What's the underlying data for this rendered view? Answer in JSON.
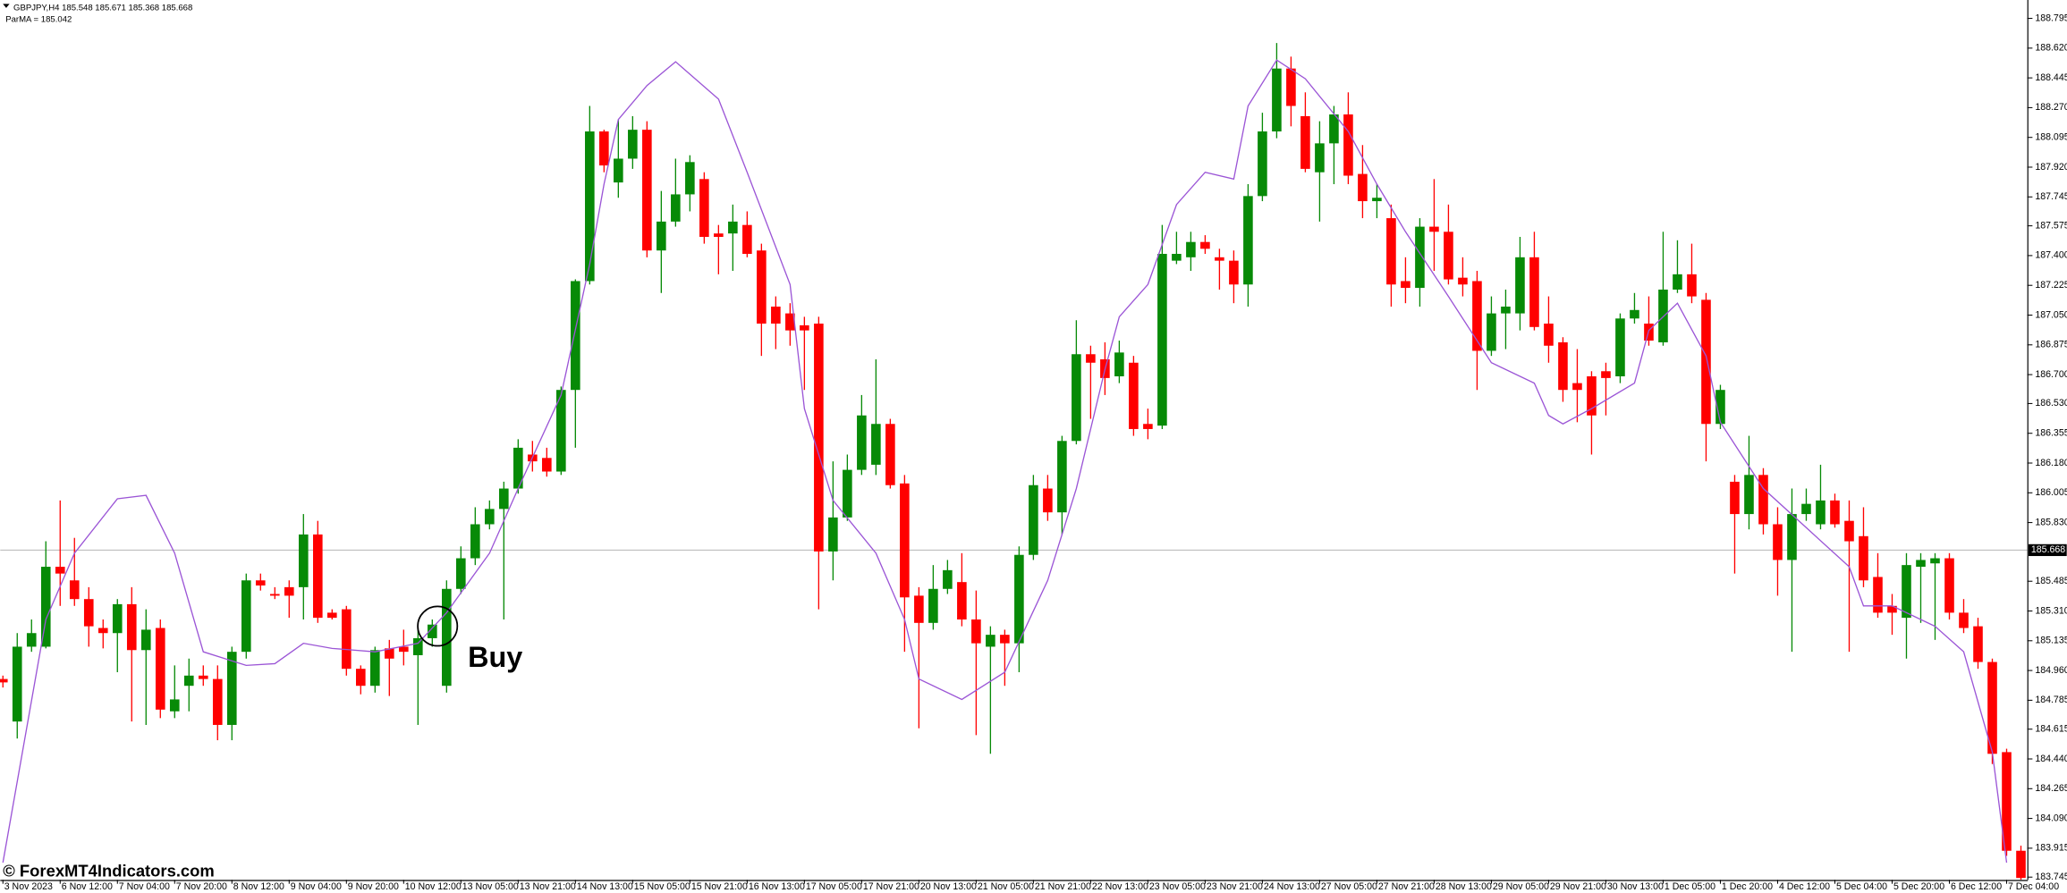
{
  "chart_data": {
    "type": "candlestick",
    "header": "GBPJPY,H4 185.548 185.671 185.368 185.668",
    "indicator_label": "ParMA = 185.042",
    "annotation": "Buy",
    "watermark": "© ForexMT4Indicators.com",
    "up_color": "#078a07",
    "down_color": "#ff0000",
    "current_price": 185.668,
    "ylim": [
      183.729,
      188.903
    ],
    "yticks": [
      188.795,
      {
        "value": 188.62,
        "label": "188.620"
      },
      188.445,
      {
        "value": 188.27,
        "label": "188.270"
      },
      188.095,
      {
        "value": 187.92,
        "label": "187.920"
      },
      187.745,
      187.575,
      {
        "value": 187.4,
        "label": "187.400"
      },
      187.225,
      {
        "value": 187.05,
        "label": "187.050"
      },
      186.875,
      {
        "value": 186.7,
        "label": "186.700"
      },
      {
        "value": 186.53,
        "label": "186.530"
      },
      186.355,
      {
        "value": 186.18,
        "label": "186.180"
      },
      186.005,
      {
        "value": 185.83,
        "label": "185.830"
      },
      185.485,
      {
        "value": 185.31,
        "label": "185.310"
      },
      185.135,
      {
        "value": 184.96,
        "label": "184.960"
      },
      184.785,
      184.615,
      {
        "value": 184.44,
        "label": "184.440"
      },
      184.265,
      {
        "value": 184.09,
        "label": "184.090"
      },
      183.915,
      183.745
    ],
    "xlabels": [
      "3 Nov 2023",
      "6 Nov 12:00",
      "7 Nov 04:00",
      "7 Nov 20:00",
      "8 Nov 12:00",
      "9 Nov 04:00",
      "9 Nov 20:00",
      "10 Nov 12:00",
      "13 Nov 05:00",
      "13 Nov 21:00",
      "14 Nov 13:00",
      "15 Nov 05:00",
      "15 Nov 21:00",
      "16 Nov 13:00",
      "17 Nov 05:00",
      "17 Nov 21:00",
      "20 Nov 13:00",
      "21 Nov 05:00",
      "21 Nov 21:00",
      "22 Nov 13:00",
      "23 Nov 05:00",
      "23 Nov 21:00",
      "24 Nov 13:00",
      "27 Nov 05:00",
      "27 Nov 21:00",
      "28 Nov 13:00",
      "29 Nov 05:00",
      "29 Nov 21:00",
      "30 Nov 13:00",
      "1 Dec 05:00",
      "1 Dec 20:00",
      "4 Dec 12:00",
      "5 Dec 04:00",
      "5 Dec 20:00",
      "6 Dec 12:00",
      "7 Dec 04:00"
    ],
    "ohlc": [
      [
        184.91,
        184.93,
        184.86,
        184.89
      ],
      [
        184.66,
        185.18,
        184.56,
        185.1
      ],
      [
        185.1,
        185.26,
        185.07,
        185.18
      ],
      [
        185.1,
        185.72,
        185.09,
        185.57
      ],
      [
        185.57,
        185.96,
        185.34,
        185.53
      ],
      [
        185.49,
        185.74,
        185.34,
        185.38
      ],
      [
        185.38,
        185.45,
        185.1,
        185.22
      ],
      [
        185.21,
        185.26,
        185.09,
        185.18
      ],
      [
        185.18,
        185.38,
        184.95,
        185.35
      ],
      [
        185.35,
        185.45,
        184.66,
        185.08
      ],
      [
        185.08,
        185.32,
        184.64,
        185.2
      ],
      [
        185.21,
        185.26,
        184.68,
        184.73
      ],
      [
        184.72,
        184.99,
        184.68,
        184.79
      ],
      [
        184.87,
        185.03,
        184.72,
        184.93
      ],
      [
        184.93,
        184.99,
        184.87,
        184.91
      ],
      [
        184.91,
        184.99,
        184.55,
        184.64
      ],
      [
        184.64,
        185.1,
        184.55,
        185.07
      ],
      [
        185.07,
        185.53,
        185.03,
        185.49
      ],
      [
        185.49,
        185.53,
        185.43,
        185.46
      ],
      [
        185.41,
        185.45,
        185.38,
        185.4
      ],
      [
        185.45,
        185.49,
        185.27,
        185.4
      ],
      [
        185.45,
        185.88,
        185.26,
        185.76
      ],
      [
        185.76,
        185.84,
        185.24,
        185.27
      ],
      [
        185.3,
        185.32,
        185.26,
        185.27
      ],
      [
        185.32,
        185.34,
        184.93,
        184.97
      ],
      [
        184.97,
        184.99,
        184.82,
        184.87
      ],
      [
        184.87,
        185.1,
        184.83,
        185.08
      ],
      [
        185.09,
        185.14,
        184.81,
        185.03
      ],
      [
        185.1,
        185.2,
        184.99,
        185.07
      ],
      [
        185.05,
        185.22,
        184.64,
        185.15
      ],
      [
        185.15,
        185.26,
        185.1,
        185.23
      ],
      [
        184.87,
        185.49,
        184.83,
        185.44
      ],
      [
        185.44,
        185.69,
        185.41,
        185.62
      ],
      [
        185.62,
        185.92,
        185.58,
        185.82
      ],
      [
        185.82,
        185.96,
        185.79,
        185.91
      ],
      [
        185.91,
        186.07,
        185.26,
        186.03
      ],
      [
        186.03,
        186.32,
        186.0,
        186.27
      ],
      [
        186.23,
        186.31,
        186.13,
        186.19
      ],
      [
        186.21,
        186.27,
        186.1,
        186.13
      ],
      [
        186.13,
        186.63,
        186.11,
        186.61
      ],
      [
        186.61,
        187.26,
        186.27,
        187.25
      ],
      [
        187.25,
        188.28,
        187.23,
        188.13
      ],
      [
        188.13,
        188.14,
        187.89,
        187.93
      ],
      [
        187.83,
        188.2,
        187.74,
        187.97
      ],
      [
        187.97,
        188.22,
        187.91,
        188.14
      ],
      [
        188.14,
        188.19,
        187.39,
        187.43
      ],
      [
        187.43,
        187.78,
        187.18,
        187.6
      ],
      [
        187.6,
        187.97,
        187.57,
        187.76
      ],
      [
        187.76,
        187.99,
        187.66,
        187.95
      ],
      [
        187.85,
        187.89,
        187.47,
        187.51
      ],
      [
        187.53,
        187.58,
        187.29,
        187.51
      ],
      [
        187.53,
        187.7,
        187.31,
        187.6
      ],
      [
        187.58,
        187.66,
        187.39,
        187.41
      ],
      [
        187.43,
        187.47,
        186.81,
        187.0
      ],
      [
        187.1,
        187.16,
        186.85,
        187.0
      ],
      [
        187.06,
        187.12,
        186.87,
        186.96
      ],
      [
        186.99,
        187.04,
        186.61,
        186.96
      ],
      [
        187.0,
        187.04,
        185.32,
        185.66
      ],
      [
        185.66,
        186.19,
        185.49,
        185.86
      ],
      [
        185.86,
        186.23,
        185.84,
        186.14
      ],
      [
        186.14,
        186.58,
        186.11,
        186.46
      ],
      [
        186.17,
        186.79,
        186.11,
        186.41
      ],
      [
        186.41,
        186.44,
        186.03,
        186.05
      ],
      [
        186.06,
        186.11,
        185.07,
        185.39
      ],
      [
        185.4,
        185.45,
        184.62,
        185.24
      ],
      [
        185.24,
        185.58,
        185.2,
        185.44
      ],
      [
        185.44,
        185.61,
        185.41,
        185.55
      ],
      [
        185.48,
        185.65,
        185.22,
        185.26
      ],
      [
        185.26,
        185.43,
        184.58,
        185.12
      ],
      [
        185.1,
        185.22,
        184.47,
        185.17
      ],
      [
        185.17,
        185.2,
        184.87,
        185.12
      ],
      [
        185.12,
        185.69,
        184.95,
        185.64
      ],
      [
        185.64,
        186.11,
        185.61,
        186.05
      ],
      [
        186.03,
        186.11,
        185.84,
        185.89
      ],
      [
        185.89,
        186.34,
        185.76,
        186.31
      ],
      [
        186.31,
        187.02,
        186.29,
        186.82
      ],
      [
        186.82,
        186.87,
        186.44,
        186.77
      ],
      [
        186.79,
        186.89,
        186.58,
        186.68
      ],
      [
        186.69,
        186.9,
        186.65,
        186.83
      ],
      [
        186.77,
        186.81,
        186.34,
        186.38
      ],
      [
        186.41,
        186.5,
        186.32,
        186.38
      ],
      [
        186.4,
        187.58,
        186.38,
        187.41
      ],
      [
        187.37,
        187.54,
        187.35,
        187.41
      ],
      [
        187.39,
        187.54,
        187.31,
        187.48
      ],
      [
        187.48,
        187.52,
        187.41,
        187.44
      ],
      [
        187.39,
        187.44,
        187.2,
        187.37
      ],
      [
        187.37,
        187.43,
        187.12,
        187.23
      ],
      [
        187.23,
        187.82,
        187.1,
        187.75
      ],
      [
        187.75,
        188.24,
        187.72,
        188.13
      ],
      [
        188.13,
        188.65,
        188.09,
        188.5
      ],
      [
        188.5,
        188.57,
        188.16,
        188.28
      ],
      [
        188.22,
        188.36,
        187.89,
        187.91
      ],
      [
        187.89,
        188.19,
        187.6,
        188.06
      ],
      [
        188.06,
        188.28,
        187.82,
        188.23
      ],
      [
        188.23,
        188.36,
        187.82,
        187.87
      ],
      [
        187.88,
        188.05,
        187.62,
        187.72
      ],
      [
        187.72,
        187.82,
        187.62,
        187.74
      ],
      [
        187.62,
        187.7,
        187.1,
        187.23
      ],
      [
        187.25,
        187.39,
        187.12,
        187.21
      ],
      [
        187.21,
        187.62,
        187.1,
        187.57
      ],
      [
        187.57,
        187.85,
        187.31,
        187.54
      ],
      [
        187.54,
        187.7,
        187.23,
        187.26
      ],
      [
        187.27,
        187.39,
        187.16,
        187.23
      ],
      [
        187.25,
        187.31,
        186.61,
        186.84
      ],
      [
        186.84,
        187.16,
        186.81,
        187.06
      ],
      [
        187.06,
        187.2,
        186.85,
        187.1
      ],
      [
        187.06,
        187.51,
        186.96,
        187.39
      ],
      [
        187.39,
        187.54,
        186.96,
        186.98
      ],
      [
        187.0,
        187.16,
        186.77,
        186.87
      ],
      [
        186.89,
        186.92,
        186.54,
        186.61
      ],
      [
        186.65,
        186.85,
        186.42,
        186.61
      ],
      [
        186.69,
        186.72,
        186.23,
        186.46
      ],
      [
        186.72,
        186.77,
        186.46,
        186.68
      ],
      [
        186.69,
        187.06,
        186.65,
        187.03
      ],
      [
        187.03,
        187.18,
        187.0,
        187.08
      ],
      [
        187.0,
        187.16,
        186.87,
        186.9
      ],
      [
        186.89,
        187.54,
        186.87,
        187.2
      ],
      [
        187.2,
        187.49,
        187.18,
        187.29
      ],
      [
        187.29,
        187.47,
        187.12,
        187.16
      ],
      [
        187.14,
        187.18,
        186.19,
        186.41
      ],
      [
        186.41,
        186.64,
        186.38,
        186.61
      ],
      [
        186.07,
        186.11,
        185.53,
        185.88
      ],
      [
        185.88,
        186.34,
        185.79,
        186.11
      ],
      [
        186.11,
        186.15,
        185.76,
        185.82
      ],
      [
        185.82,
        185.92,
        185.4,
        185.61
      ],
      [
        185.61,
        186.03,
        185.07,
        185.88
      ],
      [
        185.88,
        186.03,
        185.84,
        185.94
      ],
      [
        185.82,
        186.17,
        185.79,
        185.96
      ],
      [
        185.96,
        186.0,
        185.8,
        185.82
      ],
      [
        185.84,
        185.96,
        185.07,
        185.72
      ],
      [
        185.75,
        185.92,
        185.45,
        185.49
      ],
      [
        185.51,
        185.65,
        185.27,
        185.3
      ],
      [
        185.34,
        185.41,
        185.17,
        185.3
      ],
      [
        185.27,
        185.65,
        185.03,
        185.58
      ],
      [
        185.57,
        185.65,
        185.24,
        185.61
      ],
      [
        185.59,
        185.65,
        185.14,
        185.62
      ],
      [
        185.62,
        185.65,
        185.26,
        185.3
      ],
      [
        185.3,
        185.38,
        185.18,
        185.21
      ],
      [
        185.22,
        185.27,
        184.97,
        185.01
      ],
      [
        185.01,
        185.03,
        184.41,
        184.47
      ],
      [
        184.48,
        184.5,
        183.87,
        183.9
      ],
      [
        183.9,
        183.93,
        183.73,
        183.74
      ]
    ],
    "ma": {
      "color": "#9b55d6",
      "x": [
        0,
        3,
        5,
        8,
        10,
        12,
        14,
        17,
        19,
        21,
        23,
        26,
        29,
        31,
        34,
        36,
        39,
        41,
        42,
        43,
        45,
        47,
        50,
        52,
        55,
        56,
        58,
        61,
        63,
        64,
        67,
        70,
        73,
        75,
        77,
        78,
        80,
        82,
        84,
        86,
        87,
        89,
        91,
        94,
        96,
        98,
        101,
        104,
        107,
        108,
        109,
        111,
        114,
        115,
        117,
        119,
        120,
        123,
        126,
        129,
        130,
        132,
        135,
        137,
        139,
        140
      ],
      "values": [
        183.83,
        185.26,
        185.65,
        185.97,
        185.99,
        185.65,
        185.07,
        184.99,
        185.0,
        185.12,
        185.09,
        185.07,
        185.12,
        185.3,
        185.65,
        186.03,
        186.58,
        187.35,
        187.82,
        188.2,
        188.4,
        188.54,
        188.32,
        187.89,
        187.23,
        186.5,
        185.96,
        185.65,
        185.26,
        184.91,
        184.79,
        184.95,
        185.49,
        186.03,
        186.73,
        187.04,
        187.23,
        187.7,
        187.89,
        187.85,
        188.28,
        188.55,
        188.44,
        188.13,
        187.82,
        187.54,
        187.16,
        186.77,
        186.65,
        186.46,
        186.41,
        186.5,
        186.65,
        186.96,
        187.12,
        186.81,
        186.42,
        186.03,
        185.8,
        185.57,
        185.34,
        185.34,
        185.22,
        185.07,
        184.48,
        183.83
      ]
    },
    "buy_marker": 30
  }
}
